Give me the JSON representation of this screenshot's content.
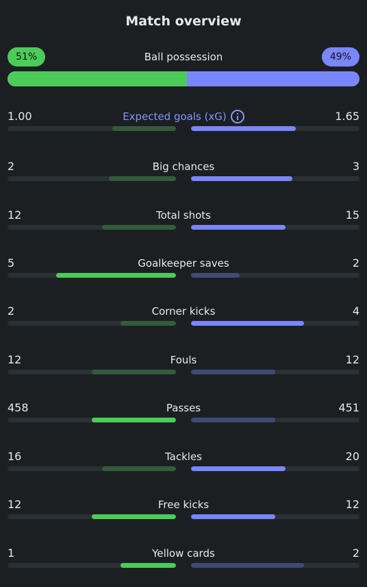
{
  "title": "Match overview",
  "possession": {
    "label": "Ball possession",
    "home": "51%",
    "away": "49%",
    "home_fraction": 0.51,
    "home_color": "#4ccb59",
    "away_color": "#7a86fb"
  },
  "stats": [
    {
      "label": "Expected goals (xG)",
      "home": "1.00",
      "away": "1.65",
      "home_fraction": 0.38,
      "away_fraction": 0.62,
      "accent": true,
      "info_icon": "info-icon"
    },
    {
      "label": "Big chances",
      "home": "2",
      "away": "3",
      "home_fraction": 0.4,
      "away_fraction": 0.6
    },
    {
      "label": "Total shots",
      "home": "12",
      "away": "15",
      "home_fraction": 0.44,
      "away_fraction": 0.56
    },
    {
      "label": "Goalkeeper saves",
      "home": "5",
      "away": "2",
      "home_fraction": 0.71,
      "away_fraction": 0.29
    },
    {
      "label": "Corner kicks",
      "home": "2",
      "away": "4",
      "home_fraction": 0.33,
      "away_fraction": 0.67
    },
    {
      "label": "Fouls",
      "home": "12",
      "away": "12",
      "home_fraction": 0.5,
      "away_fraction": 0.5
    },
    {
      "label": "Passes",
      "home": "458",
      "away": "451",
      "home_fraction": 0.5,
      "away_fraction": 0.5
    },
    {
      "label": "Tackles",
      "home": "16",
      "away": "20",
      "home_fraction": 0.44,
      "away_fraction": 0.56
    },
    {
      "label": "Free kicks",
      "home": "12",
      "away": "12",
      "home_fraction": 0.5,
      "away_fraction": 0.5
    },
    {
      "label": "Yellow cards",
      "home": "1",
      "away": "2",
      "home_fraction": 0.33,
      "away_fraction": 0.67
    }
  ]
}
